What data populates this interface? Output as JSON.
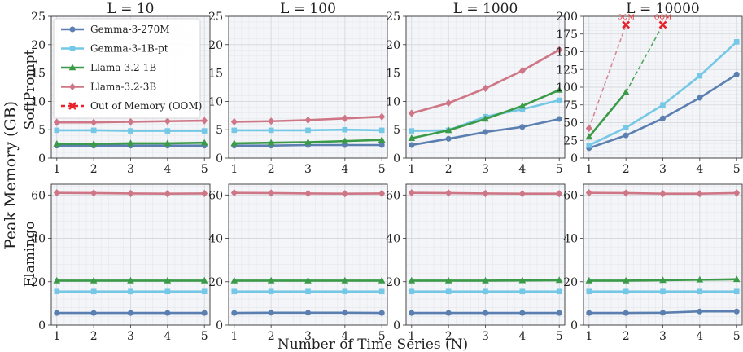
{
  "figure": {
    "ylabel": "Peak Memory (GB)",
    "xlabel": "Number of Time Series (N)",
    "row_labels": [
      "SoftPrompt",
      "Flamingo"
    ],
    "col_titles": [
      "L = 10",
      "L = 100",
      "L = 1000",
      "L = 10000"
    ],
    "oom_label": "OOM"
  },
  "legend": {
    "placement": "top-left of first panel",
    "entries": [
      {
        "label": "Gemma-3-270M",
        "color": "#5a7fb0",
        "marker": "circle"
      },
      {
        "label": "Gemma-3-1B-pt",
        "color": "#74c8e6",
        "marker": "square"
      },
      {
        "label": "Llama-3.2-1B",
        "color": "#3a9a48",
        "marker": "triangle"
      },
      {
        "label": "Llama-3.2-3B",
        "color": "#cf7686",
        "marker": "diamond"
      },
      {
        "label": "Out of Memory (OOM)",
        "color": "#e8222a",
        "marker": "x",
        "dashed": true
      }
    ]
  },
  "chart_data": [
    {
      "type": "line",
      "row": "SoftPrompt",
      "title": "L = 10",
      "x": [
        1,
        2,
        3,
        4,
        5
      ],
      "xlabel": "",
      "ylabel": "SoftPrompt",
      "ylim": [
        0,
        25
      ],
      "yticks": [
        0,
        5,
        10,
        15,
        20,
        25
      ],
      "grid": true,
      "series": [
        {
          "name": "Gemma-3-270M",
          "values": [
            2.2,
            2.2,
            2.2,
            2.2,
            2.2
          ]
        },
        {
          "name": "Gemma-3-1B-pt",
          "values": [
            4.9,
            4.9,
            4.8,
            4.8,
            4.8
          ]
        },
        {
          "name": "Llama-3.2-1B",
          "values": [
            2.5,
            2.5,
            2.6,
            2.6,
            2.7
          ]
        },
        {
          "name": "Llama-3.2-3B",
          "values": [
            6.3,
            6.3,
            6.4,
            6.5,
            6.6
          ]
        }
      ]
    },
    {
      "type": "line",
      "row": "SoftPrompt",
      "title": "L = 100",
      "x": [
        1,
        2,
        3,
        4,
        5
      ],
      "xlabel": "",
      "ylabel": "",
      "ylim": [
        0,
        25
      ],
      "yticks": [
        0,
        5,
        10,
        15,
        20,
        25
      ],
      "grid": true,
      "series": [
        {
          "name": "Gemma-3-270M",
          "values": [
            2.2,
            2.2,
            2.3,
            2.3,
            2.3
          ]
        },
        {
          "name": "Gemma-3-1B-pt",
          "values": [
            4.9,
            4.9,
            4.9,
            5.0,
            4.9
          ]
        },
        {
          "name": "Llama-3.2-1B",
          "values": [
            2.6,
            2.7,
            2.8,
            3.0,
            3.2
          ]
        },
        {
          "name": "Llama-3.2-3B",
          "values": [
            6.4,
            6.5,
            6.7,
            7.0,
            7.3
          ]
        }
      ]
    },
    {
      "type": "line",
      "row": "SoftPrompt",
      "title": "L = 1000",
      "x": [
        1,
        2,
        3,
        4,
        5
      ],
      "xlabel": "",
      "ylabel": "",
      "ylim": [
        0,
        25
      ],
      "yticks": [
        0,
        5,
        10,
        15,
        20,
        25
      ],
      "grid": true,
      "series": [
        {
          "name": "Gemma-3-270M",
          "values": [
            2.3,
            3.4,
            4.6,
            5.5,
            6.9
          ]
        },
        {
          "name": "Gemma-3-1B-pt",
          "values": [
            4.8,
            4.9,
            7.3,
            8.6,
            10.2
          ]
        },
        {
          "name": "Llama-3.2-1B",
          "values": [
            3.5,
            4.9,
            6.9,
            9.2,
            12.0
          ]
        },
        {
          "name": "Llama-3.2-3B",
          "values": [
            7.9,
            9.7,
            12.3,
            15.4,
            19.1
          ]
        }
      ]
    },
    {
      "type": "line",
      "row": "SoftPrompt",
      "title": "L = 10000",
      "x": [
        1,
        2,
        3,
        4,
        5
      ],
      "xlabel": "",
      "ylabel": "",
      "ylim": [
        0,
        200
      ],
      "yticks": [
        0,
        25,
        50,
        75,
        100,
        125,
        150,
        175,
        200
      ],
      "grid": true,
      "series": [
        {
          "name": "Gemma-3-270M",
          "values": [
            14,
            32,
            56,
            85,
            118
          ]
        },
        {
          "name": "Gemma-3-1B-pt",
          "values": [
            18,
            43,
            75,
            116,
            164
          ]
        },
        {
          "name": "Llama-3.2-1B",
          "values": [
            30,
            93,
            null,
            null,
            null
          ]
        },
        {
          "name": "Llama-3.2-3B",
          "values": [
            42,
            null,
            null,
            null,
            null
          ]
        }
      ],
      "oom": [
        {
          "series": "Llama-3.2-3B",
          "from": [
            1,
            42
          ],
          "to": [
            2,
            188
          ]
        },
        {
          "series": "Llama-3.2-1B",
          "from": [
            2,
            93
          ],
          "to": [
            3,
            188
          ]
        }
      ]
    },
    {
      "type": "line",
      "row": "Flamingo",
      "title": "",
      "x": [
        1,
        2,
        3,
        4,
        5
      ],
      "xlabel": "",
      "ylabel": "Flamingo",
      "ylim": [
        0,
        65
      ],
      "yticks": [
        0,
        20,
        40,
        60
      ],
      "grid": true,
      "series": [
        {
          "name": "Gemma-3-270M",
          "values": [
            5.6,
            5.6,
            5.6,
            5.6,
            5.6
          ]
        },
        {
          "name": "Gemma-3-1B-pt",
          "values": [
            15.5,
            15.5,
            15.5,
            15.5,
            15.5
          ]
        },
        {
          "name": "Llama-3.2-1B",
          "values": [
            20.5,
            20.5,
            20.5,
            20.5,
            20.5
          ]
        },
        {
          "name": "Llama-3.2-3B",
          "values": [
            61.0,
            60.9,
            60.7,
            60.6,
            60.7
          ]
        }
      ]
    },
    {
      "type": "line",
      "row": "Flamingo",
      "title": "",
      "x": [
        1,
        2,
        3,
        4,
        5
      ],
      "xlabel": "",
      "ylabel": "",
      "ylim": [
        0,
        65
      ],
      "yticks": [
        0,
        20,
        40,
        60
      ],
      "grid": true,
      "series": [
        {
          "name": "Gemma-3-270M",
          "values": [
            5.6,
            5.7,
            5.7,
            5.7,
            5.6
          ]
        },
        {
          "name": "Gemma-3-1B-pt",
          "values": [
            15.5,
            15.5,
            15.5,
            15.5,
            15.5
          ]
        },
        {
          "name": "Llama-3.2-1B",
          "values": [
            20.5,
            20.5,
            20.5,
            20.5,
            20.5
          ]
        },
        {
          "name": "Llama-3.2-3B",
          "values": [
            61.0,
            60.9,
            60.7,
            60.6,
            60.7
          ]
        }
      ]
    },
    {
      "type": "line",
      "row": "Flamingo",
      "title": "",
      "x": [
        1,
        2,
        3,
        4,
        5
      ],
      "xlabel": "",
      "ylabel": "",
      "ylim": [
        0,
        65
      ],
      "yticks": [
        0,
        20,
        40,
        60
      ],
      "grid": true,
      "series": [
        {
          "name": "Gemma-3-270M",
          "values": [
            5.6,
            5.6,
            5.6,
            5.6,
            5.6
          ]
        },
        {
          "name": "Gemma-3-1B-pt",
          "values": [
            15.5,
            15.5,
            15.5,
            15.5,
            15.5
          ]
        },
        {
          "name": "Llama-3.2-1B",
          "values": [
            20.5,
            20.5,
            20.5,
            20.6,
            20.7
          ]
        },
        {
          "name": "Llama-3.2-3B",
          "values": [
            61.0,
            60.9,
            60.7,
            60.6,
            60.6
          ]
        }
      ]
    },
    {
      "type": "line",
      "row": "Flamingo",
      "title": "",
      "x": [
        1,
        2,
        3,
        4,
        5
      ],
      "xlabel": "",
      "ylabel": "",
      "ylim": [
        0,
        65
      ],
      "yticks": [
        0,
        20,
        40,
        60
      ],
      "grid": true,
      "series": [
        {
          "name": "Gemma-3-270M",
          "values": [
            5.6,
            5.6,
            5.7,
            6.3,
            6.3
          ]
        },
        {
          "name": "Gemma-3-1B-pt",
          "values": [
            15.5,
            15.5,
            15.5,
            15.5,
            15.5
          ]
        },
        {
          "name": "Llama-3.2-1B",
          "values": [
            20.5,
            20.5,
            20.7,
            20.9,
            21.1
          ]
        },
        {
          "name": "Llama-3.2-3B",
          "values": [
            61.0,
            60.9,
            60.6,
            60.6,
            60.9
          ]
        }
      ]
    }
  ]
}
